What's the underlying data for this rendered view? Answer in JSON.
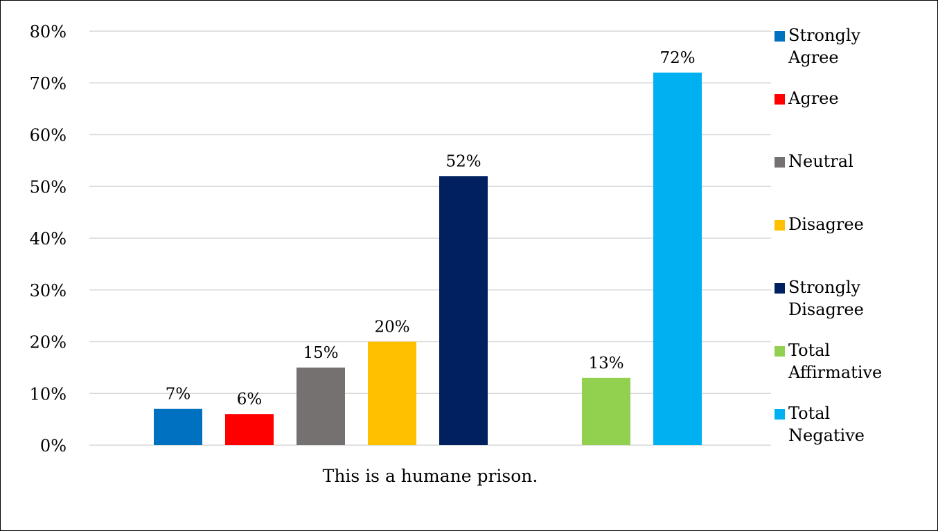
{
  "chart_data": {
    "type": "bar",
    "categories": [
      "This is a humane prison."
    ],
    "series": [
      {
        "name": "Strongly Agree",
        "values": [
          7
        ],
        "color": "#0070C0",
        "label": "7%"
      },
      {
        "name": "Agree",
        "values": [
          6
        ],
        "color": "#FF0000",
        "label": "6%"
      },
      {
        "name": "Neutral",
        "values": [
          15
        ],
        "color": "#767171",
        "label": "15%"
      },
      {
        "name": "Disagree",
        "values": [
          20
        ],
        "color": "#FFC000",
        "label": "20%"
      },
      {
        "name": "Strongly Disagree",
        "values": [
          52
        ],
        "color": "#002060",
        "label": "52%"
      },
      {
        "name": "",
        "values": [
          null
        ],
        "color": "#ffffff",
        "label": ""
      },
      {
        "name": "Total Affirmative",
        "values": [
          13
        ],
        "color": "#92D050",
        "label": "13%"
      },
      {
        "name": "Total Negative",
        "values": [
          72
        ],
        "color": "#00B0F0",
        "label": "72%"
      }
    ],
    "legend": [
      {
        "lines": [
          "Strongly",
          "Agree"
        ],
        "color": "#0070C0"
      },
      {
        "lines": [
          "Agree"
        ],
        "color": "#FF0000"
      },
      {
        "lines": [
          "Neutral"
        ],
        "color": "#767171"
      },
      {
        "lines": [
          "Disagree"
        ],
        "color": "#FFC000"
      },
      {
        "lines": [
          "Strongly",
          "Disagree"
        ],
        "color": "#002060"
      },
      {
        "lines": [
          "Total",
          "Affirmative"
        ],
        "color": "#92D050"
      },
      {
        "lines": [
          "Total",
          "Negative"
        ],
        "color": "#00B0F0"
      }
    ],
    "y_ticks": [
      "0%",
      "10%",
      "20%",
      "30%",
      "40%",
      "50%",
      "60%",
      "70%",
      "80%"
    ],
    "ylim": [
      0,
      80
    ],
    "grid": true,
    "legend_placement": "right",
    "title": "",
    "xlabel": "",
    "ylabel": ""
  }
}
